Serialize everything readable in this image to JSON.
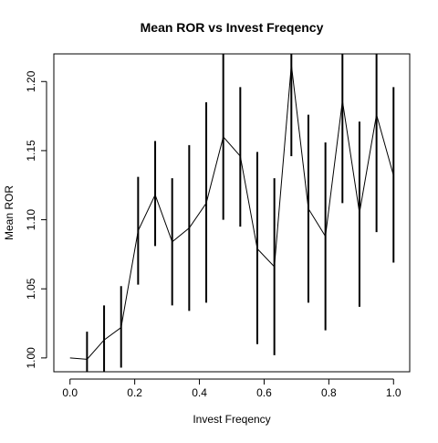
{
  "chart_data": {
    "type": "line",
    "title": "Mean ROR vs Invest Freqency",
    "xlabel": "Invest Freqency",
    "ylabel": "Mean ROR",
    "xlim": [
      -0.05,
      1.05
    ],
    "ylim": [
      0.99,
      1.22
    ],
    "x_ticks": [
      0.0,
      0.2,
      0.4,
      0.6,
      0.8,
      1.0
    ],
    "x_tick_labels": [
      "0.0",
      "0.2",
      "0.4",
      "0.6",
      "0.8",
      "1.0"
    ],
    "y_ticks": [
      1.0,
      1.05,
      1.1,
      1.15,
      1.2
    ],
    "y_tick_labels": [
      "1.00",
      "1.05",
      "1.10",
      "1.15",
      "1.20"
    ],
    "grid": false,
    "series": [
      {
        "name": "Mean ROR",
        "x": [
          0.0,
          0.0526,
          0.1053,
          0.1579,
          0.2105,
          0.2632,
          0.3158,
          0.3684,
          0.4211,
          0.4737,
          0.5263,
          0.5789,
          0.6316,
          0.6842,
          0.7368,
          0.7895,
          0.8421,
          0.8947,
          0.9474,
          1.0
        ],
        "y": [
          1.0,
          0.999,
          1.013,
          1.022,
          1.092,
          1.118,
          1.084,
          1.094,
          1.112,
          1.16,
          1.146,
          1.079,
          1.066,
          1.212,
          1.108,
          1.088,
          1.186,
          1.105,
          1.176,
          1.132
        ]
      }
    ],
    "error_bars": {
      "x": [
        0.0526,
        0.1053,
        0.1579,
        0.2105,
        0.2632,
        0.3158,
        0.3684,
        0.4211,
        0.4737,
        0.5263,
        0.5789,
        0.6316,
        0.6842,
        0.7368,
        0.7895,
        0.8421,
        0.8947,
        0.9474,
        1.0
      ],
      "low": [
        0.99,
        0.99,
        0.993,
        1.053,
        1.081,
        1.038,
        1.034,
        1.04,
        1.1,
        1.095,
        1.01,
        1.002,
        1.146,
        1.04,
        1.02,
        1.112,
        1.037,
        1.091,
        1.069
      ],
      "high": [
        1.019,
        1.038,
        1.052,
        1.131,
        1.157,
        1.13,
        1.154,
        1.185,
        1.22,
        1.196,
        1.149,
        1.13,
        1.22,
        1.176,
        1.156,
        1.22,
        1.171,
        1.22,
        1.196
      ]
    }
  }
}
